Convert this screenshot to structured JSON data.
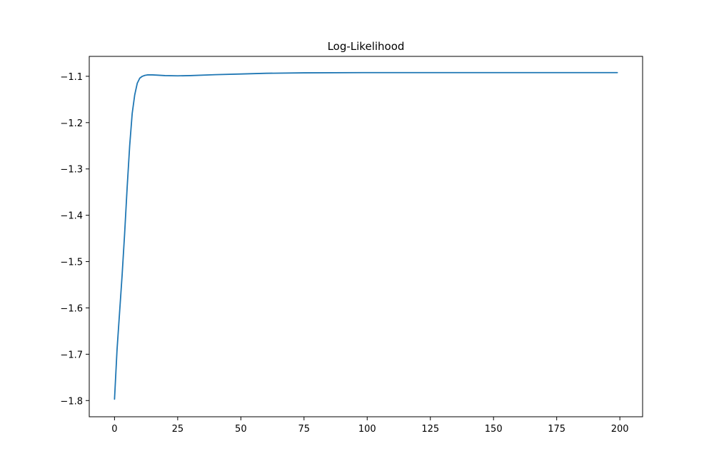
{
  "chart_data": {
    "type": "line",
    "title": "Log-Likelihood",
    "xlabel": "",
    "ylabel": "",
    "xlim": [
      -10,
      209
    ],
    "ylim": [
      -1.835,
      -1.057
    ],
    "xticks": [
      0,
      25,
      50,
      75,
      100,
      125,
      150,
      175,
      200
    ],
    "yticks": [
      -1.8,
      -1.7,
      -1.6,
      -1.5,
      -1.4,
      -1.3,
      -1.2,
      -1.1
    ],
    "xtick_labels": [
      "0",
      "25",
      "50",
      "75",
      "100",
      "125",
      "150",
      "175",
      "200"
    ],
    "ytick_labels": [
      "−1.8",
      "−1.7",
      "−1.6",
      "−1.5",
      "−1.4",
      "−1.3",
      "−1.2",
      "−1.1"
    ],
    "grid": false,
    "legend": false,
    "series": [
      {
        "color": "#1f77b4",
        "x": [
          0,
          1,
          2,
          3,
          4,
          5,
          6,
          7,
          8,
          9,
          10,
          11,
          12,
          13,
          14,
          15,
          17,
          20,
          25,
          30,
          40,
          50,
          60,
          75,
          100,
          125,
          150,
          175,
          199
        ],
        "y": [
          -1.797,
          -1.69,
          -1.61,
          -1.53,
          -1.44,
          -1.34,
          -1.25,
          -1.18,
          -1.14,
          -1.115,
          -1.104,
          -1.1,
          -1.098,
          -1.097,
          -1.097,
          -1.097,
          -1.0975,
          -1.0985,
          -1.099,
          -1.0985,
          -1.0965,
          -1.095,
          -1.0935,
          -1.0925,
          -1.092,
          -1.092,
          -1.092,
          -1.092,
          -1.092
        ]
      }
    ]
  }
}
